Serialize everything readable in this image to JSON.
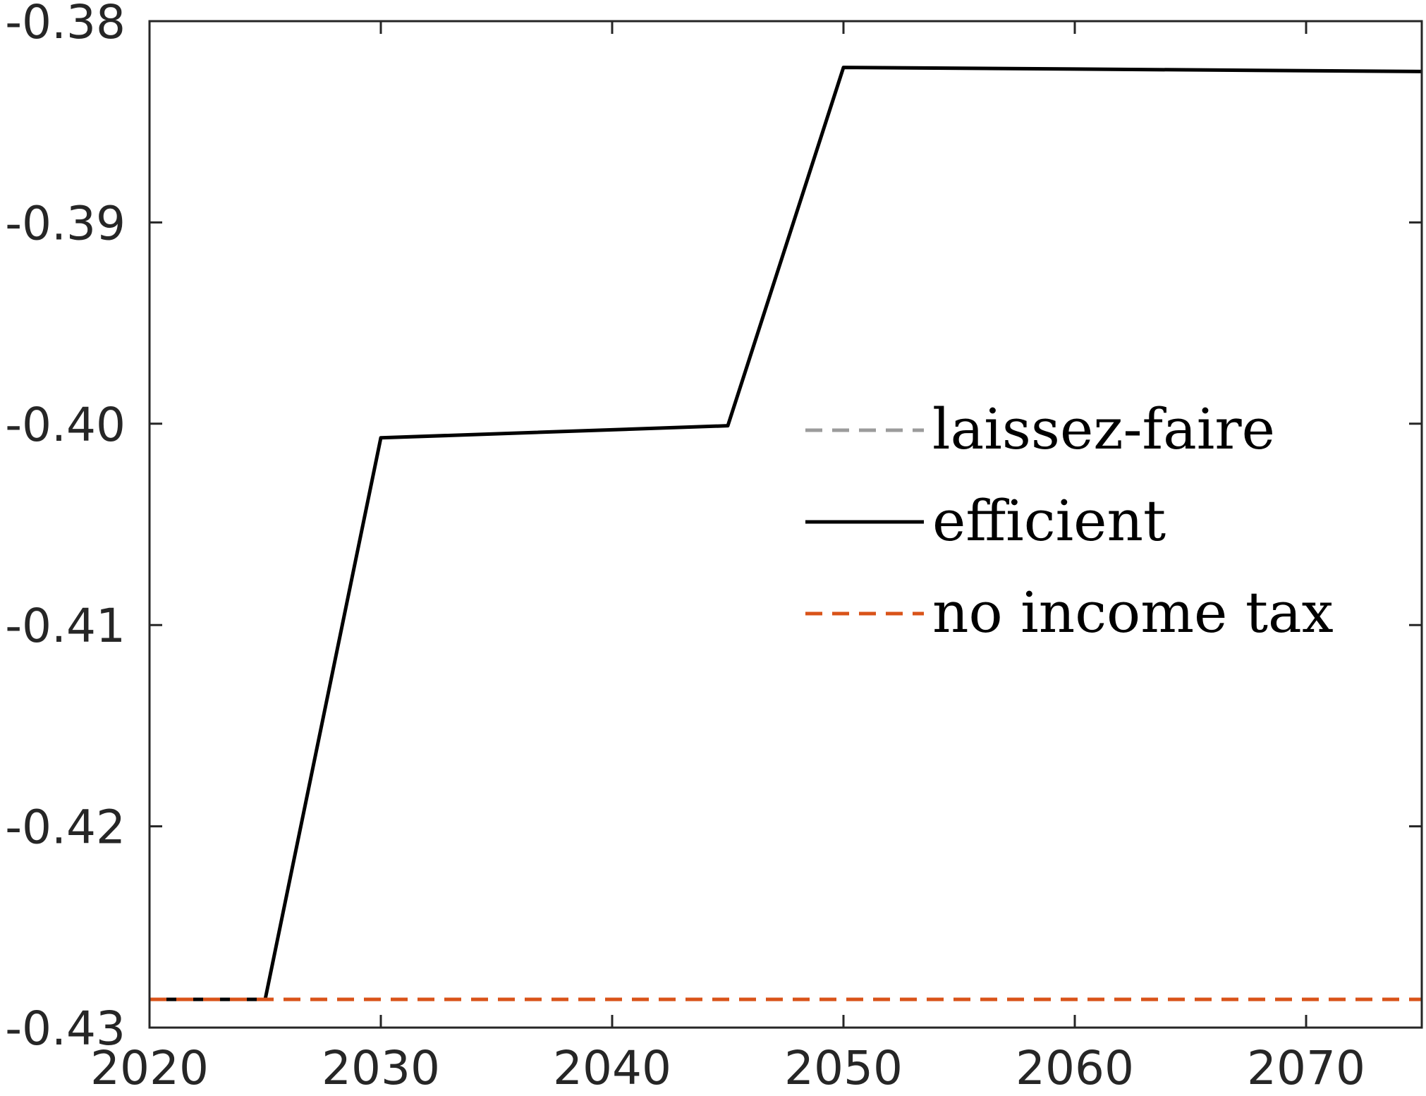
{
  "chart_data": {
    "type": "line",
    "title": "",
    "xlabel": "",
    "ylabel": "",
    "xlim": [
      2020,
      2075
    ],
    "ylim": [
      -0.43,
      -0.38
    ],
    "xticks": [
      2020,
      2030,
      2040,
      2050,
      2060,
      2070
    ],
    "xtick_labels": [
      "2020",
      "2030",
      "2040",
      "2050",
      "2060",
      "2070"
    ],
    "yticks": [
      -0.43,
      -0.42,
      -0.41,
      -0.4,
      -0.39,
      -0.38
    ],
    "ytick_labels": [
      "-0.43",
      "-0.42",
      "-0.41",
      "-0.40",
      "-0.39",
      "-0.38"
    ],
    "grid": false,
    "legend_position": "right",
    "series": [
      {
        "name": "laissez-faire",
        "color": "#9b9b9b",
        "style": "dashed",
        "x": [
          2020,
          2025,
          2030,
          2035,
          2040,
          2045,
          2050,
          2055,
          2060,
          2065,
          2070,
          2075
        ],
        "y": [
          -0.4286,
          -0.4286,
          -0.4286,
          -0.4286,
          -0.4286,
          -0.4286,
          -0.4286,
          -0.4286,
          -0.4286,
          -0.4286,
          -0.4286,
          -0.4286
        ]
      },
      {
        "name": "efficient",
        "color": "#000000",
        "style": "solid",
        "x": [
          2020,
          2025,
          2030,
          2045,
          2050,
          2075
        ],
        "y": [
          -0.4286,
          -0.4286,
          -0.4007,
          -0.4001,
          -0.3823,
          -0.3825
        ]
      },
      {
        "name": "no income tax",
        "color": "#d95319",
        "style": "dashed",
        "x": [
          2020,
          2025,
          2030,
          2035,
          2040,
          2045,
          2050,
          2055,
          2060,
          2065,
          2070,
          2075
        ],
        "y": [
          -0.4286,
          -0.4286,
          -0.4286,
          -0.4286,
          -0.4286,
          -0.4286,
          -0.4286,
          -0.4286,
          -0.4286,
          -0.4286,
          -0.4286,
          -0.4286
        ]
      }
    ]
  }
}
